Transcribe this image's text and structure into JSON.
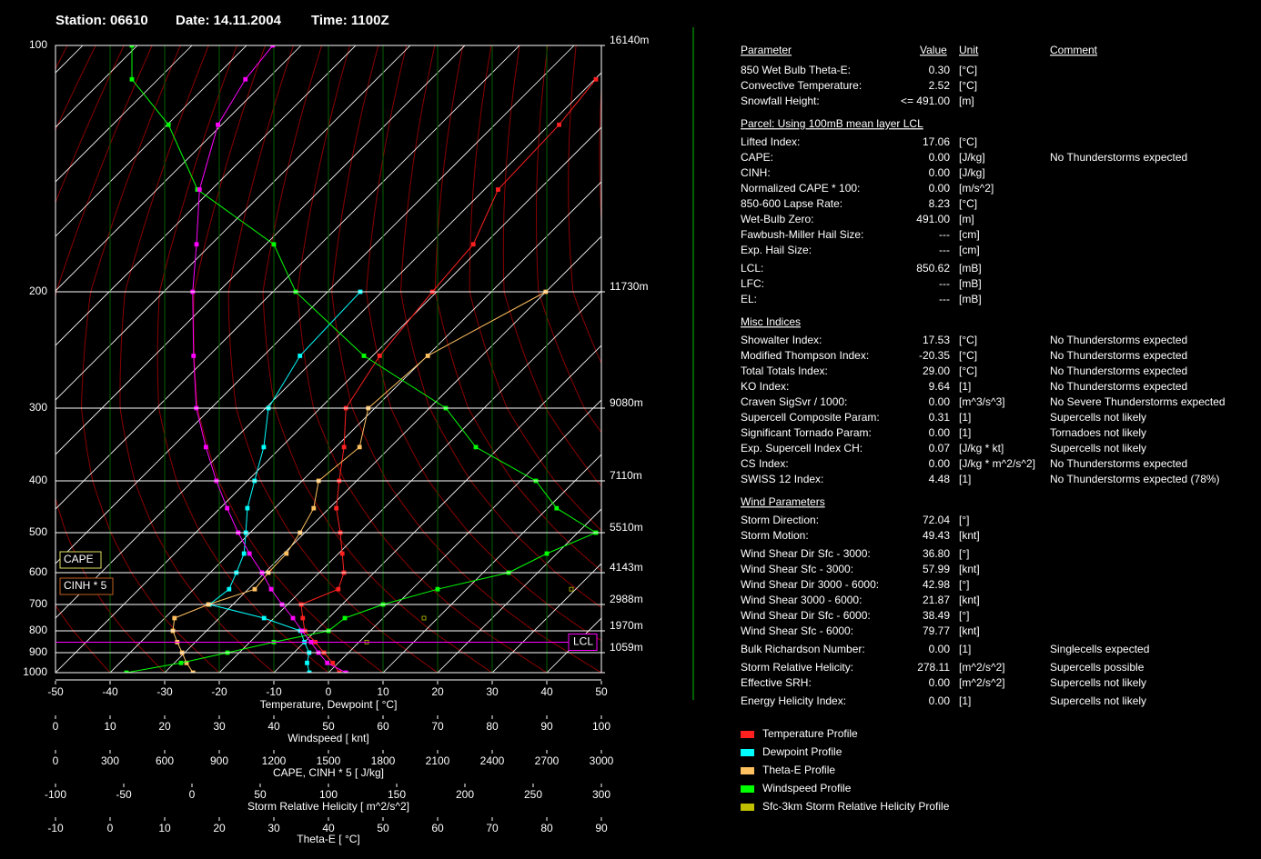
{
  "header": {
    "station": "Station: 06610",
    "date": "Date: 14.11.2004",
    "time": "Time: 1100Z"
  },
  "chart_data": {
    "type": "skewt",
    "xlim": [
      -50,
      50
    ],
    "xticks": [
      -50,
      -40,
      -30,
      -20,
      -10,
      0,
      10,
      20,
      30,
      40,
      50
    ],
    "xlabel": "Temperature, Dewpoint  [ °C]",
    "x2lim": [
      0,
      100
    ],
    "x2ticks": [
      0,
      10,
      20,
      30,
      40,
      50,
      60,
      70,
      80,
      90,
      100
    ],
    "x2label": "Windspeed  [ knt]",
    "x3lim": [
      0,
      3000
    ],
    "x3ticks": [
      0,
      300,
      600,
      900,
      1200,
      1500,
      1800,
      2100,
      2400,
      2700,
      3000
    ],
    "x3label": "CAPE, CINH * 5  [ J/kg]",
    "x4lim": [
      -100,
      300
    ],
    "x4ticks": [
      -100,
      -50,
      0,
      50,
      100,
      150,
      200,
      250,
      300
    ],
    "x4label": "Storm Relative Helicity  [ m^2/s^2]",
    "x5lim": [
      -10,
      90
    ],
    "x5ticks": [
      -10,
      0,
      10,
      20,
      30,
      40,
      50,
      60,
      70,
      80,
      90
    ],
    "x5label": "Theta-E  [ °C]",
    "ylim": [
      1000,
      100
    ],
    "yticks": [
      100,
      200,
      300,
      400,
      500,
      600,
      700,
      800,
      900,
      1000
    ],
    "height_labels": [
      "16140m",
      "11730m",
      "9080m",
      "7110m",
      "5510m",
      "4143m",
      "2988m",
      "1970m",
      "1059m"
    ],
    "pressure": [
      1000,
      950,
      900,
      850,
      800,
      750,
      700,
      650,
      600,
      550,
      500,
      450,
      400,
      350,
      300,
      250,
      200,
      175,
      150,
      125,
      110,
      100
    ],
    "series": [
      {
        "name": "Temperature Profile",
        "color": "#ff2020",
        "axis": "x",
        "values": [
          2,
          -1,
          -4.5,
          -8,
          -12,
          -14.7,
          -17.5,
          -13.5,
          -15.5,
          -19.3,
          -23.5,
          -28.7,
          -33.2,
          -38.5,
          -45.3,
          -48.7,
          -50.8,
          -52,
          -57.5,
          -58.2,
          -59.8,
          null
        ]
      },
      {
        "name": "Dewpoint Profile",
        "color": "#00ffff",
        "axis": "x",
        "values": [
          -3.5,
          -5.7,
          -7.2,
          -10,
          -12.8,
          -21.8,
          -34.3,
          -33.5,
          -35.2,
          -37.3,
          -40.8,
          -45,
          -48.7,
          -53.2,
          -59.5,
          -63.3,
          -64,
          null,
          null,
          null,
          null,
          null
        ]
      },
      {
        "name": "Theta-E Profile",
        "color": "#ffc060",
        "axis": "x5",
        "values": [
          15.2,
          14,
          13.2,
          12.3,
          11.5,
          11.8,
          18,
          26.5,
          29,
          32.3,
          34.8,
          37.3,
          38.2,
          45.7,
          47.3,
          58.2,
          79.8,
          null,
          null,
          null,
          null,
          null
        ]
      },
      {
        "name": "Windspeed Profile",
        "color": "#00ff00",
        "axis": "x2",
        "values": [
          13,
          23,
          31.5,
          40,
          50,
          53,
          60,
          70,
          83,
          90,
          99,
          91.8,
          88,
          77,
          71.5,
          56.5,
          44,
          40,
          26,
          20.7,
          14,
          14
        ]
      },
      {
        "name": "Sfc-3km Storm Relative Helicity Profile",
        "color": "#c0c000",
        "axis": "x4",
        "values": [
          null,
          null,
          null,
          128,
          null,
          170,
          null,
          278,
          null,
          null,
          null,
          null,
          null,
          null,
          null,
          null,
          null,
          null,
          null,
          null,
          null,
          null
        ]
      },
      {
        "color": "#ff00ff",
        "axis": "x",
        "values": [
          3.2,
          -2,
          -5.5,
          -8.8,
          -12.5,
          -16.5,
          -21,
          -25.8,
          -30.5,
          -36.3,
          -42.2,
          -48.7,
          -55.7,
          -63.8,
          -72.7,
          -82.8,
          -94.7,
          -102.7,
          -112.2,
          -120.7,
          -124,
          -125.2
        ]
      }
    ],
    "annotations": [
      "CAPE",
      "CINH * 5"
    ],
    "lcl": {
      "label": "LCL",
      "pressure": 850.62
    }
  },
  "table": {
    "columns": [
      "Parameter",
      "Value",
      "Unit",
      "Comment"
    ],
    "groups": [
      {
        "rows": [
          [
            "850 Wet Bulb Theta-E:",
            "0.30",
            "[°C]"
          ],
          [
            "Convective Temperature:",
            "2.52",
            "[°C]"
          ],
          [
            "Snowfall Height:",
            "<= 491.00",
            "[m]"
          ]
        ]
      },
      {
        "title": "Parcel: Using 100mB mean layer LCL",
        "rows": [
          [
            "Lifted Index:",
            "17.06",
            "[°C]"
          ],
          [
            "CAPE:",
            "0.00",
            "[J/kg]",
            "No Thunderstorms expected"
          ],
          [
            "CINH:",
            "0.00",
            "[J/kg]"
          ],
          [
            "Normalized CAPE * 100:",
            "0.00",
            "[m/s^2]"
          ],
          [
            "850-600 Lapse Rate:",
            "8.23",
            "[°C]"
          ],
          [
            "Wet-Bulb Zero:",
            "491.00",
            "[m]"
          ],
          [
            "Fawbush-Miller Hail Size:",
            "---",
            "[cm]"
          ],
          [
            "Exp. Hail Size:",
            "---",
            "[cm]"
          ]
        ]
      },
      {
        "rows": [
          [
            "LCL:",
            "850.62",
            "[mB]"
          ],
          [
            "LFC:",
            "---",
            "[mB]"
          ],
          [
            "EL:",
            "---",
            "[mB]"
          ]
        ]
      },
      {
        "title": "Misc Indices",
        "rows": [
          [
            "Showalter Index:",
            "17.53",
            "[°C]",
            "No Thunderstorms expected"
          ],
          [
            "Modified Thompson Index:",
            "-20.35",
            "[°C]",
            "No Thunderstorms expected"
          ],
          [
            "Total Totals Index:",
            "29.00",
            "[°C]",
            "No Thunderstorms expected"
          ],
          [
            "KO Index:",
            "9.64",
            "[1]",
            "No Thunderstorms expected"
          ],
          [
            "Craven SigSvr / 1000:",
            "0.00",
            "[m^3/s^3]",
            "No Severe Thunderstorms expected"
          ],
          [
            "Supercell Composite Param:",
            "0.31",
            "[1]",
            "Supercells not likely"
          ],
          [
            "Significant Tornado Param:",
            "0.00",
            "[1]",
            "Tornadoes not likely"
          ],
          [
            "Exp. Supercell Index CH:",
            "0.07",
            "[J/kg * kt]",
            "Supercells not likely"
          ],
          [
            "CS Index:",
            "0.00",
            "[J/kg * m^2/s^2]",
            "No Thunderstorms expected"
          ],
          [
            "SWISS 12 Index:",
            "4.48",
            "[1]",
            "No Thunderstorms expected (78%)"
          ]
        ]
      },
      {
        "title": "Wind Parameters",
        "rows": [
          [
            "Storm Direction:",
            "72.04",
            "[°]"
          ],
          [
            "Storm Motion:",
            "49.43",
            "[knt]"
          ]
        ]
      },
      {
        "rows": [
          [
            "Wind Shear Dir Sfc - 3000:",
            "36.80",
            "[°]"
          ],
          [
            "Wind Shear Sfc - 3000:",
            "57.99",
            "[knt]"
          ],
          [
            "Wind Shear Dir 3000 - 6000:",
            "42.98",
            "[°]"
          ],
          [
            "Wind Shear 3000 - 6000:",
            "21.87",
            "[knt]"
          ],
          [
            "Wind Shear Dir Sfc - 6000:",
            "38.49",
            "[°]"
          ],
          [
            "Wind Shear Sfc - 6000:",
            "79.77",
            "[knt]"
          ]
        ]
      },
      {
        "rows": [
          [
            "Bulk Richardson Number:",
            "0.00",
            "[1]",
            "Singlecells expected"
          ]
        ]
      },
      {
        "rows": [
          [
            "Storm Relative Helicity:",
            "278.11",
            "[m^2/s^2]",
            "Supercells possible"
          ],
          [
            "Effective SRH:",
            "0.00",
            "[m^2/s^2]",
            "Supercells not likely"
          ]
        ]
      },
      {
        "rows": [
          [
            "Energy Helicity Index:",
            "0.00",
            "[1]",
            "Supercells not likely"
          ]
        ]
      }
    ]
  }
}
